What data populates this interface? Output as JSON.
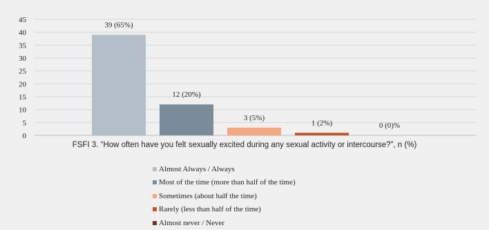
{
  "chart_data": {
    "type": "bar",
    "categories": [
      "Almost Always / Always",
      "Most of the time (more than half of the time)",
      "Sometimes (about half the time)",
      "Rarely (less than half of the time)",
      "Almost never / Never"
    ],
    "values": [
      39,
      12,
      3,
      1,
      0
    ],
    "data_labels": [
      "39 (65%)",
      "12 (20%)",
      "3 (5%)",
      "1 (2%)",
      "0 (0)%"
    ],
    "colors": [
      "#b3bec8",
      "#7a8b99",
      "#f4a882",
      "#c0522a",
      "#6e3420"
    ],
    "xlabel": "FSFI 3. “How often have you felt sexually excited during any sexual activity or intercourse?”, n (%)",
    "ylabel": "",
    "ylim": [
      0,
      45
    ],
    "yticks": [
      0,
      5,
      10,
      15,
      20,
      25,
      30,
      35,
      40,
      45
    ],
    "grid": true,
    "legend_position": "bottom"
  }
}
